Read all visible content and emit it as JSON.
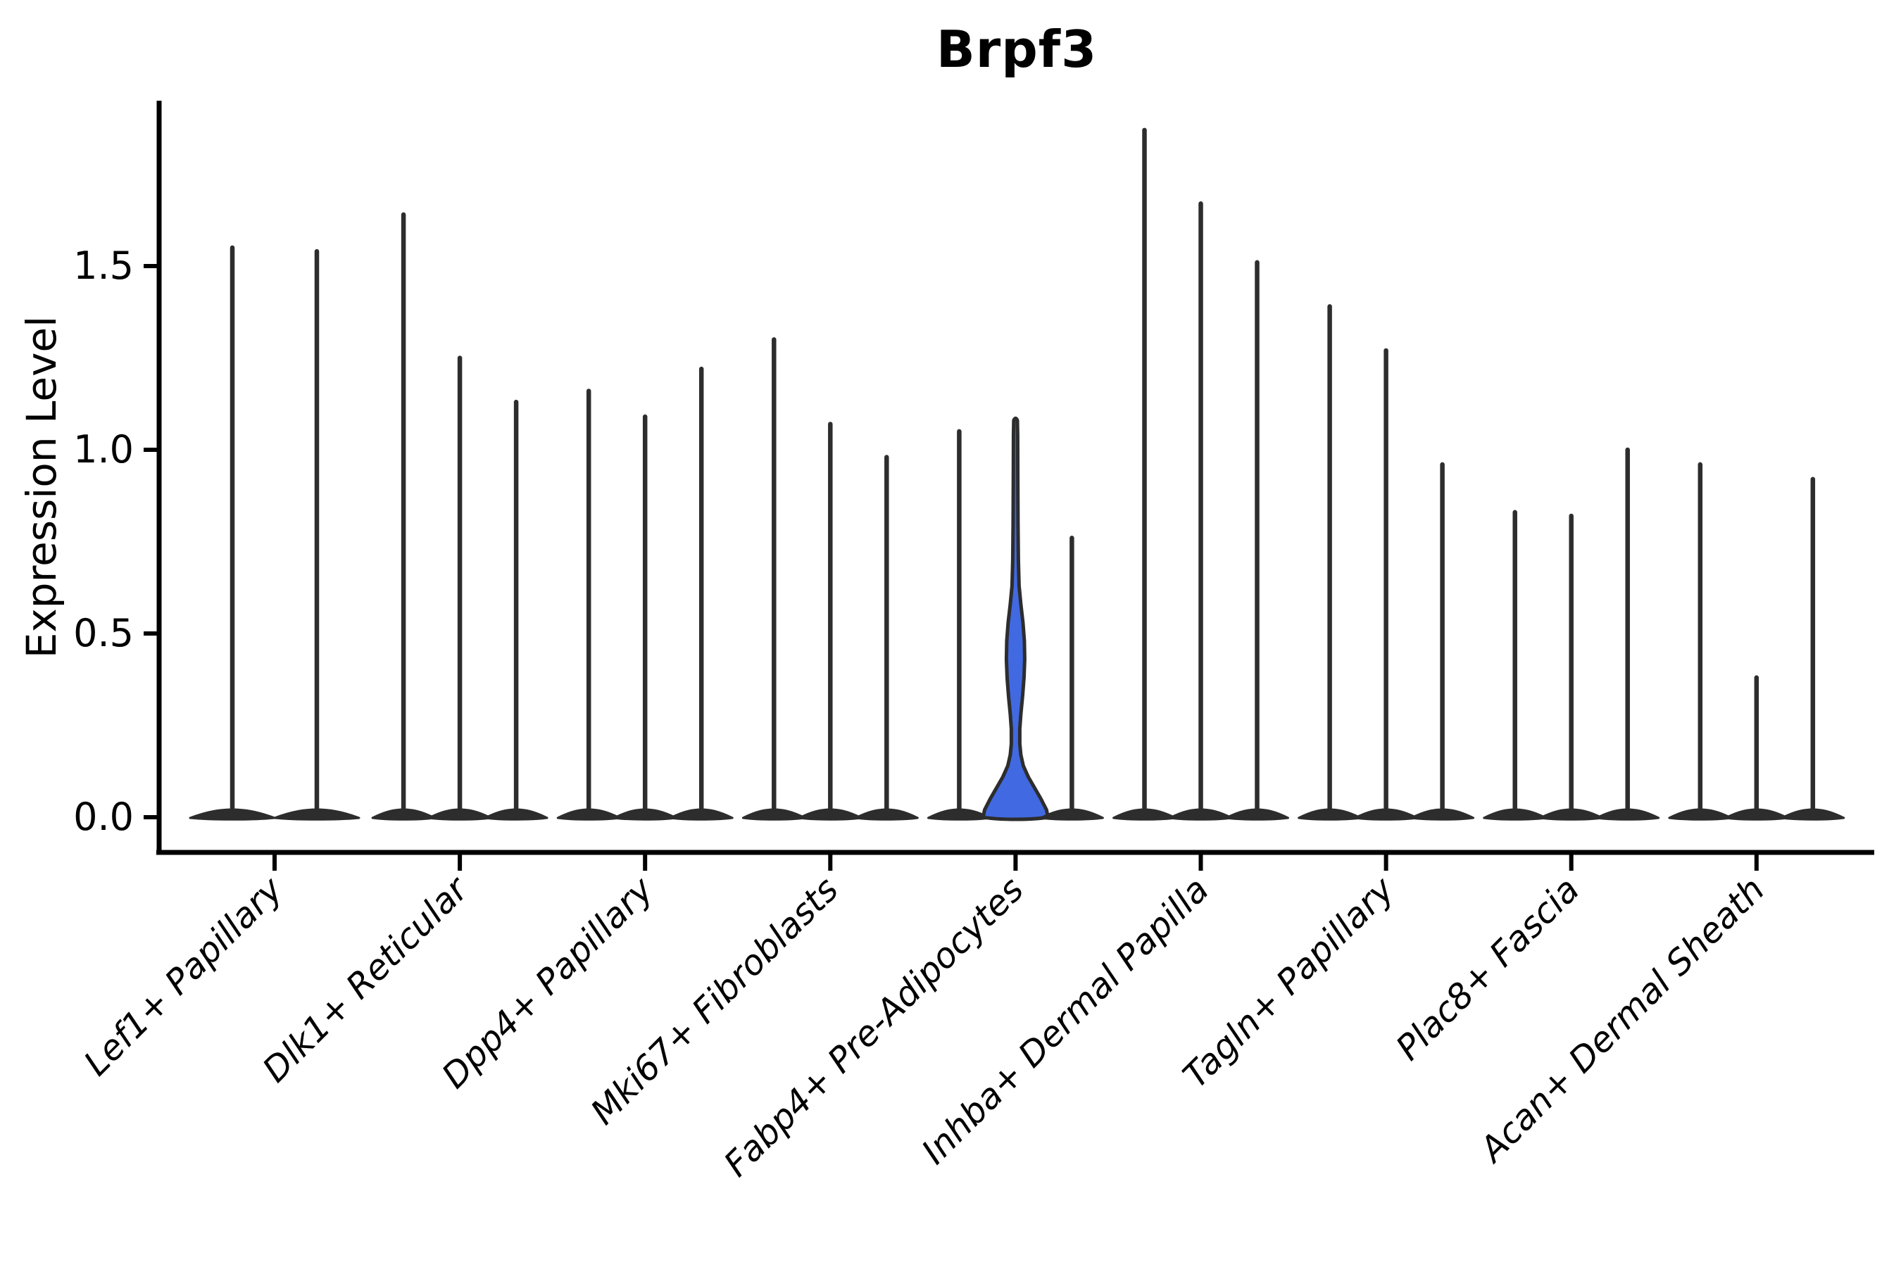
{
  "figure": {
    "background": "#ffffff"
  },
  "chart_data": {
    "type": "violin",
    "title": "Brpf3",
    "ylabel": "Expression Level",
    "xlabel": "",
    "yticks": [
      0.0,
      0.5,
      1.0,
      1.5
    ],
    "ylim": [
      -0.1,
      1.95
    ],
    "grid": false,
    "legend": "none",
    "line_color": "#2d2d2d",
    "axis_color": "#000000",
    "highlight_color": "#4169E1",
    "categories": [
      "Lef1+ Papillary",
      "Dlk1+ Reticular",
      "Dpp4+ Papillary",
      "Mki67+ Fibroblasts",
      "Fabp4+ Pre-Adipocytes",
      "Inhba+ Dermal Papilla",
      "Tagln+ Papillary",
      "Plac8+ Fascia",
      "Acan+ Dermal Sheath"
    ],
    "groups": [
      {
        "label": "Lef1+ Papillary",
        "violin_maxima": [
          1.55,
          1.54
        ],
        "highlight_index": -1
      },
      {
        "label": "Dlk1+ Reticular",
        "violin_maxima": [
          1.64,
          1.25,
          1.13
        ],
        "highlight_index": -1
      },
      {
        "label": "Dpp4+ Papillary",
        "violin_maxima": [
          1.16,
          1.09,
          1.22
        ],
        "highlight_index": -1
      },
      {
        "label": "Mki67+ Fibroblasts",
        "violin_maxima": [
          1.3,
          1.07,
          0.98
        ],
        "highlight_index": -1
      },
      {
        "label": "Fabp4+ Pre-Adipocytes",
        "violin_maxima": [
          1.05,
          1.08,
          0.76
        ],
        "highlight_index": 1
      },
      {
        "label": "Inhba+ Dermal Papilla",
        "violin_maxima": [
          1.87,
          1.67,
          1.51
        ],
        "highlight_index": -1
      },
      {
        "label": "Tagln+ Papillary",
        "violin_maxima": [
          1.39,
          1.27,
          0.96
        ],
        "highlight_index": -1
      },
      {
        "label": "Plac8+ Fascia",
        "violin_maxima": [
          0.83,
          0.82,
          1.0
        ],
        "highlight_index": -1
      },
      {
        "label": "Acan+ Dermal Sheath",
        "violin_maxima": [
          0.96,
          0.38,
          0.92
        ],
        "highlight_index": -1
      }
    ],
    "highlight_violin": {
      "group": "Fabp4+ Pre-Adipocytes",
      "max": 1.08,
      "profile_value_halfwidth": [
        [
          0.0,
          46
        ],
        [
          0.02,
          44
        ],
        [
          0.05,
          36
        ],
        [
          0.08,
          27
        ],
        [
          0.11,
          18
        ],
        [
          0.14,
          11
        ],
        [
          0.17,
          7.5
        ],
        [
          0.2,
          6.0
        ],
        [
          0.24,
          6.0
        ],
        [
          0.28,
          7.5
        ],
        [
          0.33,
          10.0
        ],
        [
          0.38,
          12.0
        ],
        [
          0.43,
          13.0
        ],
        [
          0.48,
          12.5
        ],
        [
          0.53,
          10.5
        ],
        [
          0.58,
          7.5
        ],
        [
          0.63,
          5.0
        ],
        [
          0.7,
          4.0
        ],
        [
          0.8,
          3.5
        ],
        [
          0.92,
          3.2
        ],
        [
          1.04,
          3.0
        ],
        [
          1.08,
          2.6
        ]
      ]
    }
  }
}
